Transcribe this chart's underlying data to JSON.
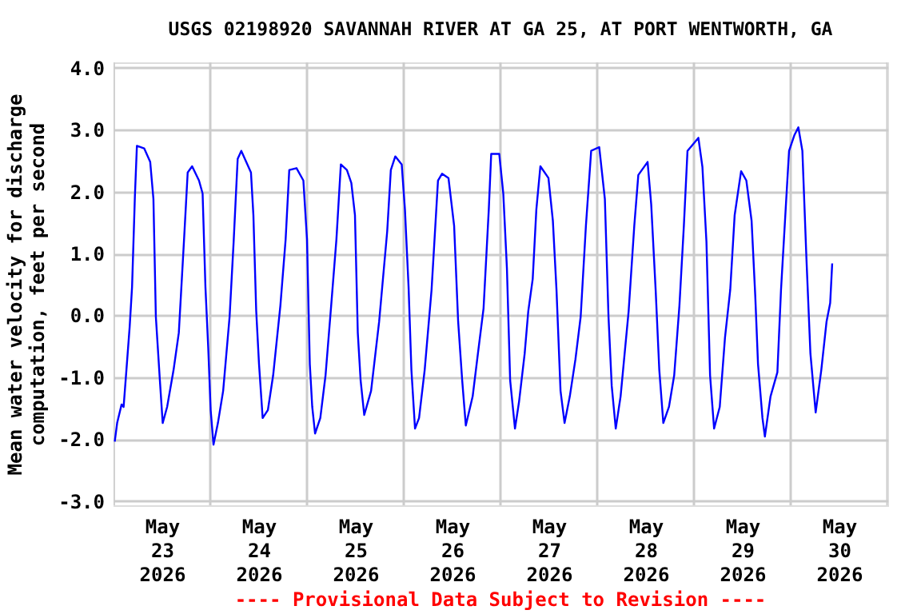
{
  "chart_data": {
    "type": "line",
    "title": "USGS 02198920 SAVANNAH RIVER AT GA 25, AT PORT WENTWORTH, GA",
    "ylabel": "Mean water velocity for discharge\ncomputation, feet per second",
    "annotations": [
      "---- Provisional Data Subject to Revision ----"
    ],
    "xlim": [
      "2026-05-23T00:00",
      "2026-05-31T00:00"
    ],
    "xticks": [
      {
        "value": "2026-05-23T00:00",
        "label": null
      },
      {
        "value": "2026-05-24T00:00",
        "label": null
      },
      {
        "value": "2026-05-25T00:00",
        "label": null
      },
      {
        "value": "2026-05-26T00:00",
        "label": null
      },
      {
        "value": "2026-05-27T00:00",
        "label": null
      },
      {
        "value": "2026-05-28T00:00",
        "label": null
      },
      {
        "value": "2026-05-29T00:00",
        "label": null
      },
      {
        "value": "2026-05-30T00:00",
        "label": null
      },
      {
        "value": "2026-05-31T00:00",
        "label": null
      },
      {
        "value": "2026-05-23T12:00",
        "label": "May\n23\n2026"
      },
      {
        "value": "2026-05-24T12:00",
        "label": "May\n24\n2026"
      },
      {
        "value": "2026-05-25T12:00",
        "label": "May\n25\n2026"
      },
      {
        "value": "2026-05-26T12:00",
        "label": "May\n26\n2026"
      },
      {
        "value": "2026-05-27T12:00",
        "label": "May\n27\n2026"
      },
      {
        "value": "2026-05-28T12:00",
        "label": "May\n28\n2026"
      },
      {
        "value": "2026-05-29T12:00",
        "label": "May\n29\n2026"
      },
      {
        "value": "2026-05-30T12:00",
        "label": "May\n30\n2026"
      }
    ],
    "ylim": [
      -3.07,
      4.09
    ],
    "yticks": [
      {
        "value": -3,
        "label": "-3.0"
      },
      {
        "value": -2,
        "label": "-2.0"
      },
      {
        "value": -1,
        "label": "-1.0"
      },
      {
        "value": 0,
        "label": "0.0"
      },
      {
        "value": 1,
        "label": "1.0"
      },
      {
        "value": 2,
        "label": "2.0"
      },
      {
        "value": 3,
        "label": "3.0"
      },
      {
        "value": 4,
        "label": "4.0"
      }
    ],
    "grid": true,
    "legend": false,
    "marker": "none",
    "line_style": "solid",
    "series": [
      {
        "color": "#0000ff",
        "x": [
          "2026-05-23T00:18",
          "2026-05-23T00:54",
          "2026-05-23T02:00",
          "2026-05-23T02:30",
          "2026-05-23T03:12",
          "2026-05-23T04:00",
          "2026-05-23T04:36",
          "2026-05-23T05:18",
          "2026-05-23T05:48",
          "2026-05-23T07:36",
          "2026-05-23T09:06",
          "2026-05-23T09:54",
          "2026-05-23T10:30",
          "2026-05-23T11:30",
          "2026-05-23T12:12",
          "2026-05-23T13:18",
          "2026-05-23T14:54",
          "2026-05-23T16:12",
          "2026-05-23T17:30",
          "2026-05-23T18:24",
          "2026-05-23T19:30",
          "2026-05-23T21:12",
          "2026-05-23T22:06",
          "2026-05-23T22:48",
          "2026-05-23T23:30",
          "2026-05-24T00:06",
          "2026-05-24T00:48",
          "2026-05-24T01:54",
          "2026-05-24T03:12",
          "2026-05-24T04:48",
          "2026-05-24T05:48",
          "2026-05-24T06:48",
          "2026-05-24T07:42",
          "2026-05-24T10:06",
          "2026-05-24T10:42",
          "2026-05-24T11:24",
          "2026-05-24T12:06",
          "2026-05-24T13:00",
          "2026-05-24T14:18",
          "2026-05-24T15:36",
          "2026-05-24T17:24",
          "2026-05-24T18:42",
          "2026-05-24T19:36",
          "2026-05-24T21:24",
          "2026-05-24T23:06",
          "2026-05-25T00:00",
          "2026-05-25T00:42",
          "2026-05-25T01:18",
          "2026-05-25T02:00",
          "2026-05-25T03:18",
          "2026-05-25T04:36",
          "2026-05-25T06:00",
          "2026-05-25T07:18",
          "2026-05-25T08:24",
          "2026-05-25T09:54",
          "2026-05-25T11:00",
          "2026-05-25T11:54",
          "2026-05-25T12:36",
          "2026-05-25T13:18",
          "2026-05-25T14:12",
          "2026-05-25T15:54",
          "2026-05-25T17:54",
          "2026-05-25T19:54",
          "2026-05-25T20:48",
          "2026-05-25T21:54",
          "2026-05-25T23:30",
          "2026-05-26T00:18",
          "2026-05-26T01:12",
          "2026-05-26T01:54",
          "2026-05-26T02:48",
          "2026-05-26T03:48",
          "2026-05-26T05:12",
          "2026-05-26T06:54",
          "2026-05-26T08:30",
          "2026-05-26T09:30",
          "2026-05-26T11:06",
          "2026-05-26T12:30",
          "2026-05-26T13:30",
          "2026-05-26T14:30",
          "2026-05-26T15:24",
          "2026-05-26T17:06",
          "2026-05-26T18:24",
          "2026-05-26T19:48",
          "2026-05-26T21:06",
          "2026-05-26T21:42",
          "2026-05-26T22:48",
          "2026-05-26T23:42",
          "2026-05-27T00:42",
          "2026-05-27T01:36",
          "2026-05-27T02:24",
          "2026-05-27T03:36",
          "2026-05-27T04:36",
          "2026-05-27T06:00",
          "2026-05-27T06:54",
          "2026-05-27T08:00",
          "2026-05-27T08:54",
          "2026-05-27T09:54",
          "2026-05-27T11:54",
          "2026-05-27T13:00",
          "2026-05-27T13:54",
          "2026-05-27T14:54",
          "2026-05-27T15:54",
          "2026-05-27T17:12",
          "2026-05-27T18:36",
          "2026-05-27T19:54",
          "2026-05-27T21:12",
          "2026-05-27T22:30",
          "2026-05-28T00:30",
          "2026-05-28T01:54",
          "2026-05-28T02:48",
          "2026-05-28T03:36",
          "2026-05-28T04:36",
          "2026-05-28T05:48",
          "2026-05-28T06:48",
          "2026-05-28T07:48",
          "2026-05-28T09:12",
          "2026-05-28T10:12",
          "2026-05-28T12:30",
          "2026-05-28T13:24",
          "2026-05-28T14:30",
          "2026-05-28T15:24",
          "2026-05-28T16:24",
          "2026-05-28T17:48",
          "2026-05-28T19:06",
          "2026-05-28T20:24",
          "2026-05-28T21:30",
          "2026-05-28T22:24",
          "2026-05-29T01:06",
          "2026-05-29T02:06",
          "2026-05-29T03:06",
          "2026-05-29T04:00",
          "2026-05-29T05:00",
          "2026-05-29T06:24",
          "2026-05-29T07:42",
          "2026-05-29T09:00",
          "2026-05-29T10:06",
          "2026-05-29T11:42",
          "2026-05-29T13:00",
          "2026-05-29T14:18",
          "2026-05-29T15:12",
          "2026-05-29T15:54",
          "2026-05-29T17:00",
          "2026-05-29T17:36",
          "2026-05-29T19:00",
          "2026-05-29T20:42",
          "2026-05-29T21:36",
          "2026-05-29T22:54",
          "2026-05-29T23:36",
          "2026-05-30T00:54",
          "2026-05-30T01:54",
          "2026-05-30T02:54",
          "2026-05-30T03:54",
          "2026-05-30T04:54",
          "2026-05-30T06:12",
          "2026-05-30T07:36",
          "2026-05-30T08:54",
          "2026-05-30T09:48",
          "2026-05-30T10:18"
        ],
        "values": [
          -2.04,
          -1.74,
          -1.44,
          -1.48,
          -0.88,
          -0.19,
          0.46,
          1.92,
          2.74,
          2.7,
          2.48,
          1.88,
          -0.02,
          -1.05,
          -1.74,
          -1.48,
          -0.88,
          -0.28,
          1.23,
          2.31,
          2.41,
          2.18,
          1.97,
          0.46,
          -0.53,
          -1.53,
          -2.09,
          -1.74,
          -1.22,
          -0.02,
          1.19,
          2.53,
          2.66,
          2.31,
          1.62,
          0.07,
          -0.79,
          -1.66,
          -1.53,
          -0.97,
          0.16,
          1.23,
          2.35,
          2.38,
          2.18,
          1.23,
          -0.79,
          -1.48,
          -1.91,
          -1.66,
          -0.97,
          0.16,
          1.23,
          2.44,
          2.35,
          2.14,
          1.62,
          -0.28,
          -1.05,
          -1.61,
          -1.22,
          -0.1,
          1.36,
          2.35,
          2.57,
          2.44,
          1.71,
          0.46,
          -0.88,
          -1.83,
          -1.66,
          -0.88,
          0.41,
          2.18,
          2.29,
          2.22,
          1.45,
          -0.1,
          -1.05,
          -1.78,
          -1.31,
          -0.62,
          0.11,
          1.71,
          2.61,
          2.61,
          2.61,
          1.97,
          0.76,
          -1.05,
          -1.83,
          -1.4,
          -0.62,
          0.07,
          0.59,
          1.71,
          2.41,
          2.22,
          1.53,
          0.41,
          -1.22,
          -1.74,
          -1.31,
          -0.71,
          -0.02,
          1.45,
          2.66,
          2.72,
          1.88,
          -0.02,
          -1.14,
          -1.83,
          -1.31,
          -0.62,
          0.07,
          1.45,
          2.27,
          2.48,
          1.79,
          0.41,
          -0.88,
          -1.74,
          -1.48,
          -0.97,
          0.16,
          1.45,
          2.66,
          2.87,
          2.4,
          1.19,
          -0.97,
          -1.83,
          -1.48,
          -0.36,
          0.41,
          1.62,
          2.33,
          2.18,
          1.53,
          0.33,
          -0.79,
          -1.66,
          -1.96,
          -1.31,
          -0.92,
          0.41,
          1.88,
          2.66,
          2.91,
          3.04,
          2.66,
          0.93,
          -0.62,
          -1.57,
          -0.88,
          -0.1,
          0.2,
          0.84
        ]
      }
    ]
  }
}
